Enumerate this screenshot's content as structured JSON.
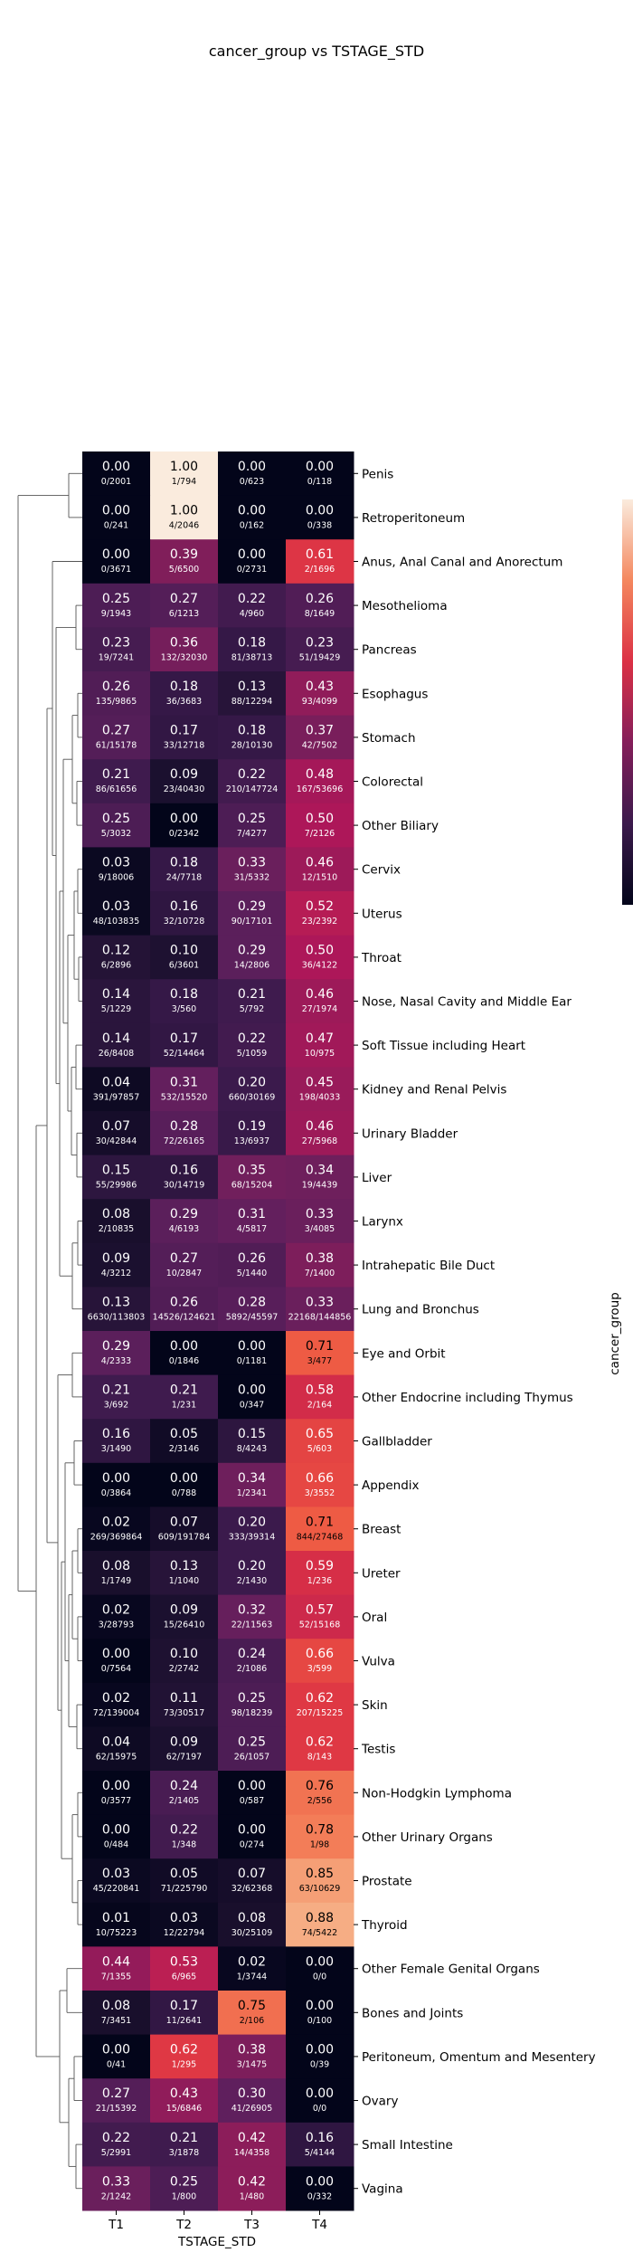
{
  "chart_data": {
    "type": "heatmap",
    "title": "cancer_group vs TSTAGE_STD",
    "xlabel": "TSTAGE_STD",
    "ylabel": "cancer_group",
    "columns": [
      "T1",
      "T2",
      "T3",
      "T4"
    ],
    "color_range": [
      0,
      1
    ],
    "colormap": "rocket",
    "dendrogram": "left",
    "colorbar": "right (partially visible)",
    "rows": [
      {
        "label": "Penis",
        "values": [
          0.0,
          1.0,
          0.0,
          0.0
        ],
        "counts": [
          "0/2001",
          "1/794",
          "0/623",
          "0/118"
        ]
      },
      {
        "label": "Retroperitoneum",
        "values": [
          0.0,
          1.0,
          0.0,
          0.0
        ],
        "counts": [
          "0/241",
          "4/2046",
          "0/162",
          "0/338"
        ]
      },
      {
        "label": "Anus, Anal Canal and Anorectum",
        "values": [
          0.0,
          0.39,
          0.0,
          0.61
        ],
        "counts": [
          "0/3671",
          "5/6500",
          "0/2731",
          "2/1696"
        ]
      },
      {
        "label": "Mesothelioma",
        "values": [
          0.25,
          0.27,
          0.22,
          0.26
        ],
        "counts": [
          "9/1943",
          "6/1213",
          "4/960",
          "8/1649"
        ]
      },
      {
        "label": "Pancreas",
        "values": [
          0.23,
          0.36,
          0.18,
          0.23
        ],
        "counts": [
          "19/7241",
          "132/32030",
          "81/38713",
          "51/19429"
        ]
      },
      {
        "label": "Esophagus",
        "values": [
          0.26,
          0.18,
          0.13,
          0.43
        ],
        "counts": [
          "135/9865",
          "36/3683",
          "88/12294",
          "93/4099"
        ]
      },
      {
        "label": "Stomach",
        "values": [
          0.27,
          0.17,
          0.18,
          0.37
        ],
        "counts": [
          "61/15178",
          "33/12718",
          "28/10130",
          "42/7502"
        ]
      },
      {
        "label": "Colorectal",
        "values": [
          0.21,
          0.09,
          0.22,
          0.48
        ],
        "counts": [
          "86/61656",
          "23/40430",
          "210/147724",
          "167/53696"
        ]
      },
      {
        "label": "Other Biliary",
        "values": [
          0.25,
          0.0,
          0.25,
          0.5
        ],
        "counts": [
          "5/3032",
          "0/2342",
          "7/4277",
          "7/2126"
        ]
      },
      {
        "label": "Cervix",
        "values": [
          0.03,
          0.18,
          0.33,
          0.46
        ],
        "counts": [
          "9/18006",
          "24/7718",
          "31/5332",
          "12/1510"
        ]
      },
      {
        "label": "Uterus",
        "values": [
          0.03,
          0.16,
          0.29,
          0.52
        ],
        "counts": [
          "48/103835",
          "32/10728",
          "90/17101",
          "23/2392"
        ]
      },
      {
        "label": "Throat",
        "values": [
          0.12,
          0.1,
          0.29,
          0.5
        ],
        "counts": [
          "6/2896",
          "6/3601",
          "14/2806",
          "36/4122"
        ]
      },
      {
        "label": "Nose, Nasal Cavity and Middle Ear",
        "values": [
          0.14,
          0.18,
          0.21,
          0.46
        ],
        "counts": [
          "5/1229",
          "3/560",
          "5/792",
          "27/1974"
        ]
      },
      {
        "label": "Soft Tissue including Heart",
        "values": [
          0.14,
          0.17,
          0.22,
          0.47
        ],
        "counts": [
          "26/8408",
          "52/14464",
          "5/1059",
          "10/975"
        ]
      },
      {
        "label": "Kidney and Renal Pelvis",
        "values": [
          0.04,
          0.31,
          0.2,
          0.45
        ],
        "counts": [
          "391/97857",
          "532/15520",
          "660/30169",
          "198/4033"
        ]
      },
      {
        "label": "Urinary Bladder",
        "values": [
          0.07,
          0.28,
          0.19,
          0.46
        ],
        "counts": [
          "30/42844",
          "72/26165",
          "13/6937",
          "27/5968"
        ]
      },
      {
        "label": "Liver",
        "values": [
          0.15,
          0.16,
          0.35,
          0.34
        ],
        "counts": [
          "55/29986",
          "30/14719",
          "68/15204",
          "19/4439"
        ]
      },
      {
        "label": "Larynx",
        "values": [
          0.08,
          0.29,
          0.31,
          0.33
        ],
        "counts": [
          "2/10835",
          "4/6193",
          "4/5817",
          "3/4085"
        ]
      },
      {
        "label": "Intrahepatic Bile Duct",
        "values": [
          0.09,
          0.27,
          0.26,
          0.38
        ],
        "counts": [
          "4/3212",
          "10/2847",
          "5/1440",
          "7/1400"
        ]
      },
      {
        "label": "Lung and Bronchus",
        "values": [
          0.13,
          0.26,
          0.28,
          0.33
        ],
        "counts": [
          "6630/113803",
          "14526/124621",
          "5892/45597",
          "22168/144856"
        ]
      },
      {
        "label": "Eye and Orbit",
        "values": [
          0.29,
          0.0,
          0.0,
          0.71
        ],
        "counts": [
          "4/2333",
          "0/1846",
          "0/1181",
          "3/477"
        ]
      },
      {
        "label": "Other Endocrine including Thymus",
        "values": [
          0.21,
          0.21,
          0.0,
          0.58
        ],
        "counts": [
          "3/692",
          "1/231",
          "0/347",
          "2/164"
        ]
      },
      {
        "label": "Gallbladder",
        "values": [
          0.16,
          0.05,
          0.15,
          0.65
        ],
        "counts": [
          "3/1490",
          "2/3146",
          "8/4243",
          "5/603"
        ]
      },
      {
        "label": "Appendix",
        "values": [
          0.0,
          0.0,
          0.34,
          0.66
        ],
        "counts": [
          "0/3864",
          "0/788",
          "1/2341",
          "3/3552"
        ]
      },
      {
        "label": "Breast",
        "values": [
          0.02,
          0.07,
          0.2,
          0.71
        ],
        "counts": [
          "269/369864",
          "609/191784",
          "333/39314",
          "844/27468"
        ]
      },
      {
        "label": "Ureter",
        "values": [
          0.08,
          0.13,
          0.2,
          0.59
        ],
        "counts": [
          "1/1749",
          "1/1040",
          "2/1430",
          "1/236"
        ]
      },
      {
        "label": "Oral",
        "values": [
          0.02,
          0.09,
          0.32,
          0.57
        ],
        "counts": [
          "3/28793",
          "15/26410",
          "22/11563",
          "52/15168"
        ]
      },
      {
        "label": "Vulva",
        "values": [
          0.0,
          0.1,
          0.24,
          0.66
        ],
        "counts": [
          "0/7564",
          "2/2742",
          "2/1086",
          "3/599"
        ]
      },
      {
        "label": "Skin",
        "values": [
          0.02,
          0.11,
          0.25,
          0.62
        ],
        "counts": [
          "72/139004",
          "73/30517",
          "98/18239",
          "207/15225"
        ]
      },
      {
        "label": "Testis",
        "values": [
          0.04,
          0.09,
          0.25,
          0.62
        ],
        "counts": [
          "62/15975",
          "62/7197",
          "26/1057",
          "8/143"
        ]
      },
      {
        "label": "Non-Hodgkin Lymphoma",
        "values": [
          0.0,
          0.24,
          0.0,
          0.76
        ],
        "counts": [
          "0/3577",
          "2/1405",
          "0/587",
          "2/556"
        ]
      },
      {
        "label": "Other Urinary Organs",
        "values": [
          0.0,
          0.22,
          0.0,
          0.78
        ],
        "counts": [
          "0/484",
          "1/348",
          "0/274",
          "1/98"
        ]
      },
      {
        "label": "Prostate",
        "values": [
          0.03,
          0.05,
          0.07,
          0.85
        ],
        "counts": [
          "45/220841",
          "71/225790",
          "32/62368",
          "63/10629"
        ]
      },
      {
        "label": "Thyroid",
        "values": [
          0.01,
          0.03,
          0.08,
          0.88
        ],
        "counts": [
          "10/75223",
          "12/22794",
          "30/25109",
          "74/5422"
        ]
      },
      {
        "label": "Other Female Genital Organs",
        "values": [
          0.44,
          0.53,
          0.02,
          0.0
        ],
        "counts": [
          "7/1355",
          "6/965",
          "1/3744",
          "0/0"
        ]
      },
      {
        "label": "Bones and Joints",
        "values": [
          0.08,
          0.17,
          0.75,
          0.0
        ],
        "counts": [
          "7/3451",
          "11/2641",
          "2/106",
          "0/100"
        ]
      },
      {
        "label": "Peritoneum, Omentum and Mesentery",
        "values": [
          0.0,
          0.62,
          0.38,
          0.0
        ],
        "counts": [
          "0/41",
          "1/295",
          "3/1475",
          "0/39"
        ]
      },
      {
        "label": "Ovary",
        "values": [
          0.27,
          0.43,
          0.3,
          0.0
        ],
        "counts": [
          "21/15392",
          "15/6846",
          "41/26905",
          "0/0"
        ]
      },
      {
        "label": "Small Intestine",
        "values": [
          0.22,
          0.21,
          0.42,
          0.16
        ],
        "counts": [
          "5/2991",
          "3/1878",
          "14/4358",
          "5/4144"
        ]
      },
      {
        "label": "Vagina",
        "values": [
          0.33,
          0.25,
          0.42,
          0.0
        ],
        "counts": [
          "2/1242",
          "1/800",
          "1/480",
          "0/332"
        ]
      }
    ]
  }
}
